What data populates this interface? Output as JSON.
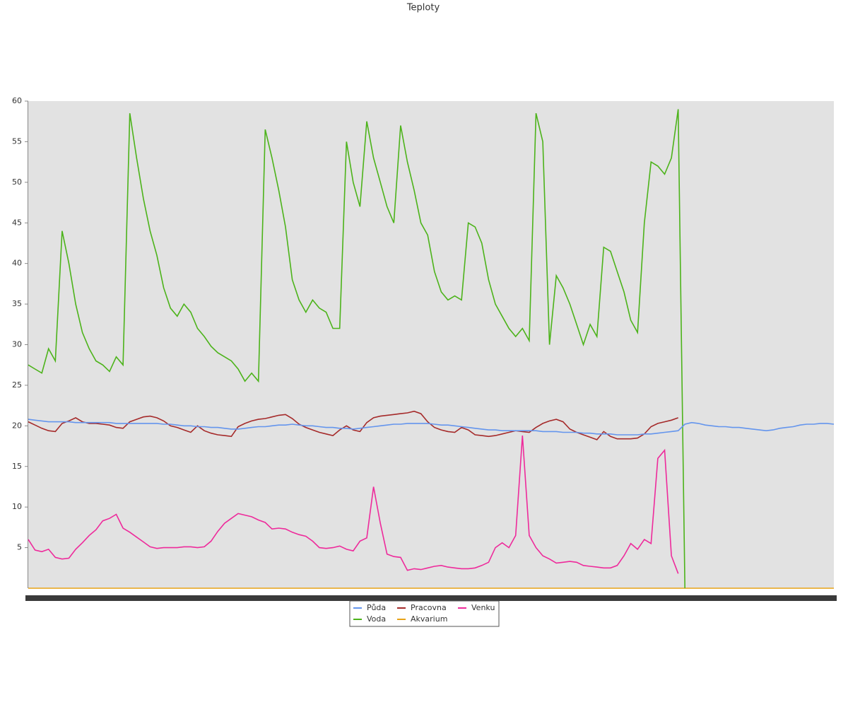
{
  "chart_data": {
    "type": "line",
    "title": "Teploty",
    "categories": [
      null,
      null,
      null,
      null,
      null,
      null,
      null,
      null,
      null,
      null,
      null,
      null,
      null,
      null,
      null,
      null,
      null,
      null,
      null,
      null,
      null,
      null,
      null,
      null,
      null,
      null,
      null,
      null,
      null,
      null,
      null,
      null,
      null,
      null,
      null,
      null,
      null,
      null,
      null,
      null,
      null,
      null,
      null,
      null,
      null,
      null,
      null,
      null,
      null,
      null,
      null,
      null,
      null,
      null,
      null,
      null,
      null,
      null,
      null,
      null,
      null,
      null,
      null,
      null,
      null,
      null,
      null,
      null,
      null,
      null,
      null,
      null,
      null,
      null,
      null,
      null,
      null,
      null,
      null,
      null,
      null,
      null,
      null,
      null,
      null,
      null,
      null,
      null,
      null,
      null,
      null,
      null,
      null,
      null,
      null,
      null,
      null,
      null,
      null,
      null,
      null,
      null,
      null,
      null,
      null,
      null,
      null,
      null,
      null,
      null,
      null,
      null,
      null,
      null,
      null,
      null,
      null,
      null,
      null,
      null
    ],
    "ylim": [
      0,
      60
    ],
    "yticks": [
      5,
      10,
      15,
      20,
      25,
      30,
      35,
      40,
      45,
      50,
      55,
      60
    ],
    "background": "#e2e2e2",
    "series": [
      {
        "name": "Půda",
        "color": "#6495ed",
        "values": [
          20.8,
          20.7,
          20.6,
          20.5,
          20.5,
          20.5,
          20.5,
          20.4,
          20.4,
          20.4,
          20.4,
          20.4,
          20.4,
          20.3,
          20.3,
          20.3,
          20.3,
          20.3,
          20.3,
          20.3,
          20.2,
          20.2,
          20.1,
          20,
          20,
          19.9,
          19.9,
          19.8,
          19.8,
          19.7,
          19.6,
          19.6,
          19.7,
          19.8,
          19.9,
          19.9,
          20,
          20.1,
          20.1,
          20.2,
          20.1,
          20,
          20,
          19.9,
          19.8,
          19.8,
          19.7,
          19.7,
          19.6,
          19.7,
          19.8,
          19.9,
          20,
          20.1,
          20.2,
          20.2,
          20.3,
          20.3,
          20.3,
          20.3,
          20.2,
          20.1,
          20.1,
          20,
          19.9,
          19.8,
          19.7,
          19.6,
          19.5,
          19.5,
          19.4,
          19.4,
          19.4,
          19.4,
          19.4,
          19.4,
          19.3,
          19.3,
          19.3,
          19.2,
          19.2,
          19.2,
          19.1,
          19.1,
          19,
          19,
          19,
          18.9,
          18.9,
          18.9,
          18.9,
          19,
          19,
          19.1,
          19.2,
          19.3,
          19.4,
          20.2,
          20.4,
          20.3,
          20.1,
          20,
          19.9,
          19.9,
          19.8,
          19.8,
          19.7,
          19.6,
          19.5,
          19.4,
          19.5,
          19.7,
          19.8,
          19.9,
          20.1,
          20.2,
          20.2,
          20.3,
          20.3,
          20.2
        ]
      },
      {
        "name": "Pracovna",
        "color": "#a52a2a",
        "values": [
          20.5,
          20.1,
          19.7,
          19.4,
          19.3,
          20.3,
          20.6,
          21,
          20.5,
          20.3,
          20.3,
          20.2,
          20.1,
          19.8,
          19.7,
          20.5,
          20.8,
          21.1,
          21.2,
          21,
          20.6,
          20,
          19.8,
          19.5,
          19.2,
          20,
          19.4,
          19.1,
          18.9,
          18.8,
          18.7,
          19.9,
          20.3,
          20.6,
          20.8,
          20.9,
          21.1,
          21.3,
          21.4,
          20.9,
          20.2,
          19.8,
          19.5,
          19.2,
          19,
          18.8,
          19.5,
          20,
          19.5,
          19.3,
          20.4,
          21,
          21.2,
          21.3,
          21.4,
          21.5,
          21.6,
          21.8,
          21.5,
          20.5,
          19.8,
          19.5,
          19.3,
          19.2,
          19.8,
          19.5,
          18.9,
          18.8,
          18.7,
          18.8,
          19,
          19.2,
          19.4,
          19.3,
          19.2,
          19.8,
          20.3,
          20.6,
          20.8,
          20.5,
          19.6,
          19.2,
          18.9,
          18.6,
          18.3,
          19.3,
          18.7,
          18.4,
          18.4,
          18.4,
          18.5,
          19,
          19.9,
          20.3,
          20.5,
          20.7,
          21,
          null,
          null,
          null,
          null,
          null,
          null,
          null,
          null,
          null,
          null,
          null,
          null,
          null,
          null,
          null,
          null,
          null,
          null,
          null,
          null,
          null,
          null,
          null
        ]
      },
      {
        "name": "Venku",
        "color": "#ee2a9b",
        "values": [
          6,
          4.7,
          4.5,
          4.8,
          3.8,
          3.6,
          3.7,
          4.8,
          5.6,
          6.5,
          7.2,
          8.3,
          8.6,
          9.1,
          7.4,
          6.9,
          6.3,
          5.7,
          5.1,
          4.9,
          5,
          5,
          5,
          5.1,
          5.1,
          5,
          5.1,
          5.8,
          7,
          8,
          8.6,
          9.2,
          9,
          8.8,
          8.4,
          8.1,
          7.3,
          7.4,
          7.3,
          6.9,
          6.6,
          6.4,
          5.8,
          5,
          4.9,
          5,
          5.2,
          4.8,
          4.6,
          5.8,
          6.2,
          12.5,
          8,
          4.2,
          3.9,
          3.8,
          2.2,
          2.4,
          2.3,
          2.5,
          2.7,
          2.8,
          2.6,
          2.5,
          2.4,
          2.4,
          2.5,
          2.8,
          3.2,
          5,
          5.6,
          5,
          6.5,
          18.8,
          6.5,
          5,
          4,
          3.6,
          3.1,
          3.2,
          3.3,
          3.2,
          2.8,
          2.7,
          2.6,
          2.5,
          2.5,
          2.8,
          4,
          5.5,
          4.8,
          6,
          5.5,
          16,
          17,
          4,
          1.8,
          null,
          null,
          null,
          null,
          null,
          null,
          null,
          null,
          null,
          null,
          null,
          null,
          null,
          null,
          null,
          null,
          null,
          null,
          null,
          null,
          null,
          null,
          null
        ]
      },
      {
        "name": "Voda",
        "color": "#4cb31a",
        "values": [
          27.5,
          27,
          26.5,
          29.5,
          28,
          44,
          40,
          35,
          31.5,
          29.5,
          28,
          27.5,
          26.7,
          28.5,
          27.5,
          58.5,
          53,
          48,
          44,
          41,
          37,
          34.5,
          33.5,
          35,
          34,
          32,
          31,
          29.8,
          29,
          28.5,
          28,
          27,
          25.5,
          26.5,
          25.5,
          56.5,
          53,
          49,
          44.5,
          38,
          35.5,
          34,
          35.5,
          34.5,
          34,
          32,
          32,
          55,
          50,
          47,
          57.5,
          53,
          50,
          47,
          45,
          57,
          52.5,
          49,
          45,
          43.5,
          39,
          36.5,
          35.5,
          36,
          35.5,
          45,
          44.5,
          42.5,
          38,
          35,
          33.5,
          32,
          31,
          32,
          30.5,
          58.5,
          55,
          30,
          38.5,
          37,
          35,
          32.5,
          30,
          32.5,
          31,
          42,
          41.5,
          39,
          36.5,
          33,
          31.5,
          45,
          52.5,
          52,
          51,
          53,
          59,
          0,
          null,
          null,
          null,
          null,
          null,
          null,
          null,
          null,
          null,
          null,
          null,
          null,
          null,
          null,
          null,
          null,
          null,
          null,
          null,
          null,
          null,
          null
        ]
      },
      {
        "name": "Akvarium",
        "color": "#e8a317",
        "values": [
          0,
          0,
          0,
          0,
          0,
          0,
          0,
          0,
          0,
          0,
          0,
          0,
          0,
          0,
          0,
          0,
          0,
          0,
          0,
          0,
          0,
          0,
          0,
          0,
          0,
          0,
          0,
          0,
          0,
          0,
          0,
          0,
          0,
          0,
          0,
          0,
          0,
          0,
          0,
          0,
          0,
          0,
          0,
          0,
          0,
          0,
          0,
          0,
          0,
          0,
          0,
          0,
          0,
          0,
          0,
          0,
          0,
          0,
          0,
          0,
          0,
          0,
          0,
          0,
          0,
          0,
          0,
          0,
          0,
          0,
          0,
          0,
          0,
          0,
          0,
          0,
          0,
          0,
          0,
          0,
          0,
          0,
          0,
          0,
          0,
          0,
          0,
          0,
          0,
          0,
          0,
          0,
          0,
          0,
          0,
          0,
          0,
          0,
          0,
          0,
          0,
          0,
          0,
          0,
          0,
          0,
          0,
          0,
          0,
          0,
          0,
          0,
          0,
          0,
          0,
          0,
          0,
          0,
          0,
          0
        ]
      }
    ]
  }
}
